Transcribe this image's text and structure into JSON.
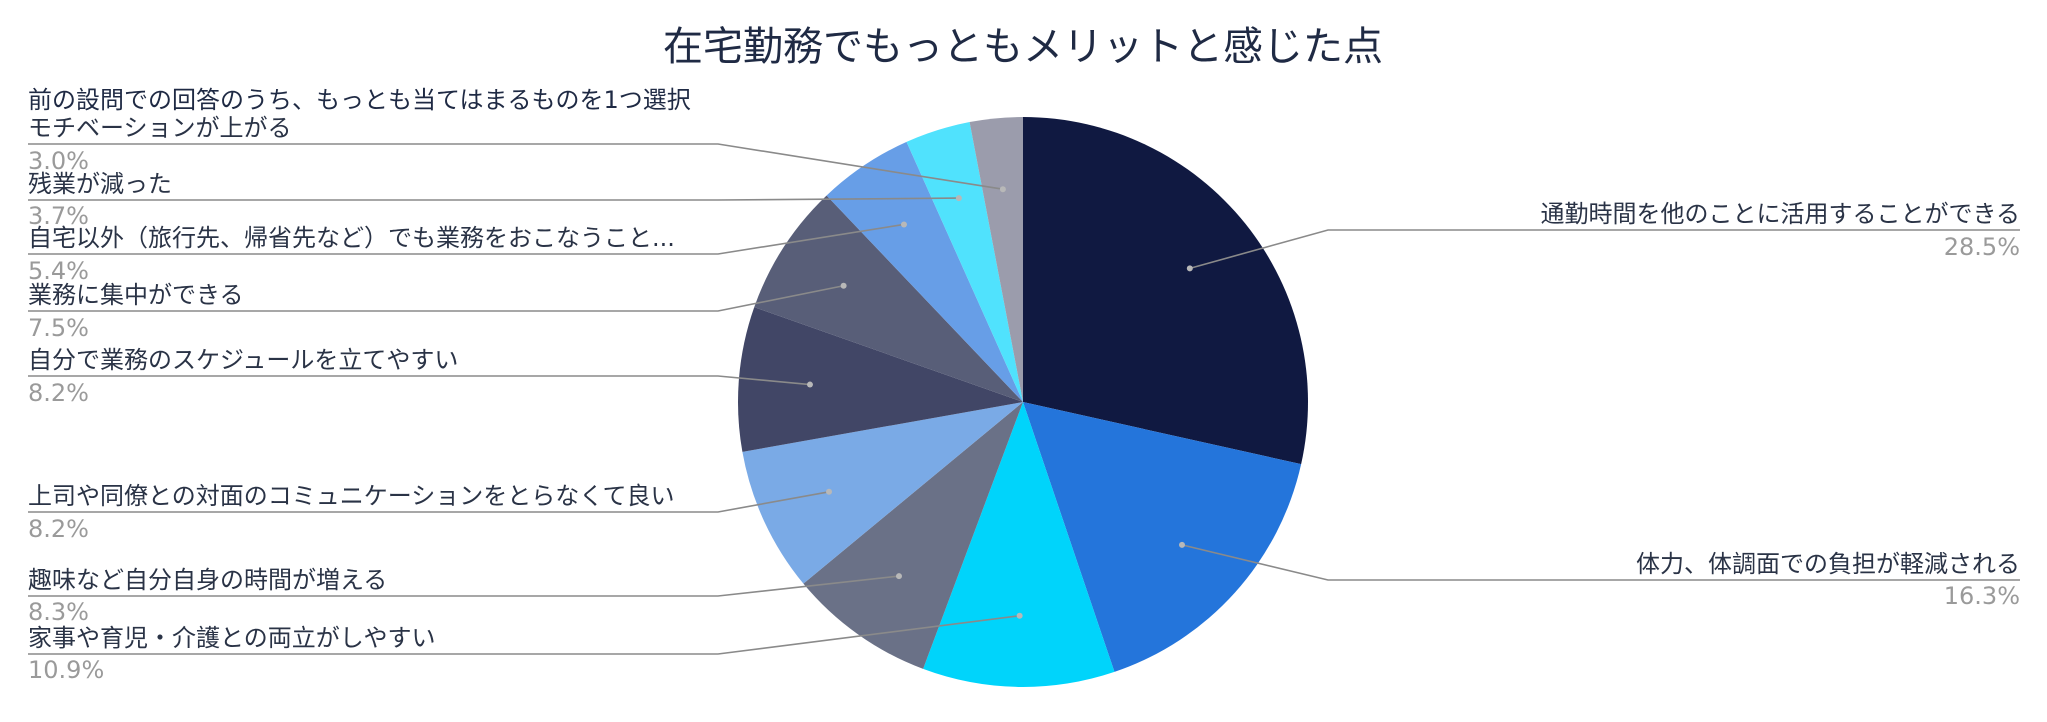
{
  "chart_data": {
    "type": "pie",
    "title": "在宅勤務でもっともメリットと感じた点",
    "subtitle": "前の設問での回答のうち、もっとも当てはまるものを1つ選択",
    "start_angle": "12 o'clock",
    "direction": "clockwise",
    "slices": [
      {
        "label": "通勤時間を他のことに活用することができる",
        "value": 28.5,
        "value_label": "28.5%",
        "color": "#101941"
      },
      {
        "label": "体力、体調面での負担が軽減される",
        "value": 16.3,
        "value_label": "16.3%",
        "color": "#2475db"
      },
      {
        "label": "家事や育児・介護との両立がしやすい",
        "value": 10.9,
        "value_label": "10.9%",
        "color": "#00d4fb"
      },
      {
        "label": "趣味など自分自身の時間が増える",
        "value": 8.3,
        "value_label": "8.3%",
        "color": "#6a7187"
      },
      {
        "label": "上司や同僚との対面のコミュニケーションをとらなくて良い",
        "value": 8.2,
        "value_label": "8.2%",
        "color": "#7aaae6"
      },
      {
        "label": "自分で業務のスケジュールを立てやすい",
        "value": 8.2,
        "value_label": "8.2%",
        "color": "#414666"
      },
      {
        "label": "業務に集中ができる",
        "value": 7.5,
        "value_label": "7.5%",
        "color": "#585e78"
      },
      {
        "label": "自宅以外（旅行先、帰省先など）でも業務をおこなうこと...",
        "value": 5.4,
        "value_label": "5.4%",
        "color": "#679ee7"
      },
      {
        "label": "残業が減った",
        "value": 3.7,
        "value_label": "3.7%",
        "color": "#50e2fd"
      },
      {
        "label": "モチベーションが上がる",
        "value": 3.0,
        "value_label": "3.0%",
        "color": "#9b9cac"
      }
    ]
  }
}
